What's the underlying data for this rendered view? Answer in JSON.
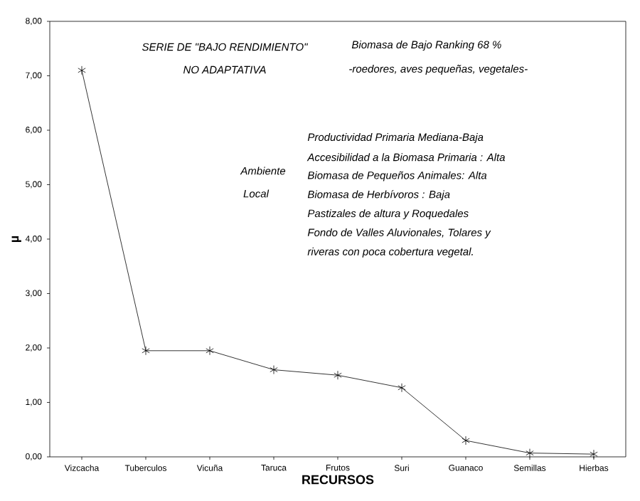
{
  "chart_data": {
    "type": "line",
    "xlabel": "RECURSOS",
    "ylabel": "µ",
    "categories": [
      "Vizcacha",
      "Tuberculos",
      "Vicuña",
      "Taruca",
      "Frutos",
      "Suri",
      "Guanaco",
      "Semillas",
      "Hierbas"
    ],
    "series": [
      {
        "color": "#000000",
        "values": [
          7.1,
          1.95,
          1.95,
          1.6,
          1.5,
          1.27,
          0.3,
          0.07,
          0.05
        ]
      }
    ],
    "ylim": [
      0,
      8
    ],
    "yticks": [
      {
        "value": 0,
        "label": "0,00"
      },
      {
        "value": 1,
        "label": "1,00"
      },
      {
        "value": 2,
        "label": "2,00"
      },
      {
        "value": 3,
        "label": "3,00"
      },
      {
        "value": 4,
        "label": "4,00"
      },
      {
        "value": 5,
        "label": "5,00"
      },
      {
        "value": 6,
        "label": "6,00"
      },
      {
        "value": 7,
        "label": "7,00"
      },
      {
        "value": 8,
        "label": "8,00"
      }
    ],
    "marker": "cross",
    "line_style": "solid",
    "grid": false,
    "annotations": [
      "SERIE DE \"BAJO RENDIMIENTO\"",
      "NO ADAPTATIVA",
      "Biomasa de Bajo Ranking 68 %",
      "-roedores, aves pequeñas, vegetales-",
      "Ambiente",
      "Local",
      "Productividad Primaria Mediana-Baja",
      "Accesibilidad a la Biomasa Primaria : Alta",
      "Biomasa de Pequeños Animales: Alta",
      "Biomasa de Herbívoros : Baja",
      "Pastizales de altura y Roquedales",
      "Fondo de  Valles Aluvionales, Tolares y",
      "riveras con poca cobertura vegetal."
    ]
  }
}
